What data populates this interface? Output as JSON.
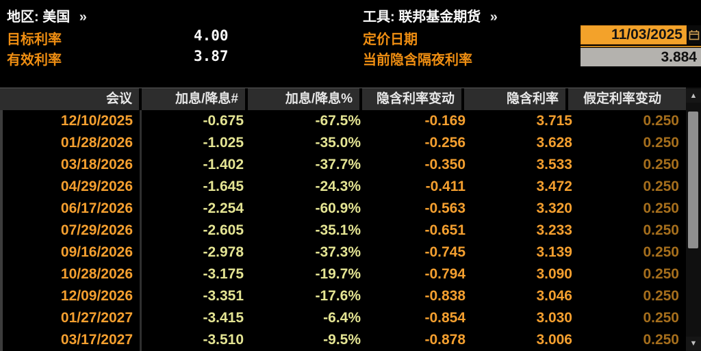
{
  "header": {
    "region_label": "地区:",
    "region_value": "美国",
    "region_chevron": "»",
    "tool_label": "工具:",
    "tool_value": "联邦基金期货",
    "tool_chevron": "»",
    "target_rate_label": "目标利率",
    "target_rate_value": "4.00",
    "effective_rate_label": "有效利率",
    "effective_rate_value": "3.87",
    "pricing_date_label": "定价日期",
    "pricing_date_value": "11/03/2025",
    "implied_overnight_label": "当前隐含隔夜利率",
    "implied_overnight_value": "3.884"
  },
  "table": {
    "columns": [
      "会议",
      "加息/降息#",
      "加息/降息%",
      "隐含利率变动",
      "隐含利率",
      "假定利率变动"
    ],
    "rows": [
      {
        "meeting": "12/10/2025",
        "hike_cut_num": "-0.675",
        "hike_cut_pct": "-67.5%",
        "implied_change": "-0.169",
        "implied_rate": "3.715",
        "assumed_change": "0.250"
      },
      {
        "meeting": "01/28/2026",
        "hike_cut_num": "-1.025",
        "hike_cut_pct": "-35.0%",
        "implied_change": "-0.256",
        "implied_rate": "3.628",
        "assumed_change": "0.250"
      },
      {
        "meeting": "03/18/2026",
        "hike_cut_num": "-1.402",
        "hike_cut_pct": "-37.7%",
        "implied_change": "-0.350",
        "implied_rate": "3.533",
        "assumed_change": "0.250"
      },
      {
        "meeting": "04/29/2026",
        "hike_cut_num": "-1.645",
        "hike_cut_pct": "-24.3%",
        "implied_change": "-0.411",
        "implied_rate": "3.472",
        "assumed_change": "0.250"
      },
      {
        "meeting": "06/17/2026",
        "hike_cut_num": "-2.254",
        "hike_cut_pct": "-60.9%",
        "implied_change": "-0.563",
        "implied_rate": "3.320",
        "assumed_change": "0.250"
      },
      {
        "meeting": "07/29/2026",
        "hike_cut_num": "-2.605",
        "hike_cut_pct": "-35.1%",
        "implied_change": "-0.651",
        "implied_rate": "3.233",
        "assumed_change": "0.250"
      },
      {
        "meeting": "09/16/2026",
        "hike_cut_num": "-2.978",
        "hike_cut_pct": "-37.3%",
        "implied_change": "-0.745",
        "implied_rate": "3.139",
        "assumed_change": "0.250"
      },
      {
        "meeting": "10/28/2026",
        "hike_cut_num": "-3.175",
        "hike_cut_pct": "-19.7%",
        "implied_change": "-0.794",
        "implied_rate": "3.090",
        "assumed_change": "0.250"
      },
      {
        "meeting": "12/09/2026",
        "hike_cut_num": "-3.351",
        "hike_cut_pct": "-17.6%",
        "implied_change": "-0.838",
        "implied_rate": "3.046",
        "assumed_change": "0.250"
      },
      {
        "meeting": "01/27/2027",
        "hike_cut_num": "-3.415",
        "hike_cut_pct": "-6.4%",
        "implied_change": "-0.854",
        "implied_rate": "3.030",
        "assumed_change": "0.250"
      },
      {
        "meeting": "03/17/2027",
        "hike_cut_num": "-3.510",
        "hike_cut_pct": "-9.5%",
        "implied_change": "-0.878",
        "implied_rate": "3.006",
        "assumed_change": "0.250"
      }
    ]
  },
  "scrollbar": {
    "up_glyph": "▲",
    "down_glyph": "▼"
  },
  "icons": {
    "calendar": "calendar-icon"
  },
  "colors": {
    "background": "#000000",
    "label_orange": "#ef8e12",
    "data_orange": "#f49f2f",
    "data_yellow": "#e4e493",
    "assumed_dim_orange": "#a56e1c",
    "header_bg": "#2d2d2d",
    "date_field_bg": "#f3a22a",
    "gray_field_bg": "#b4b2ae",
    "text_white": "#fafafa"
  }
}
